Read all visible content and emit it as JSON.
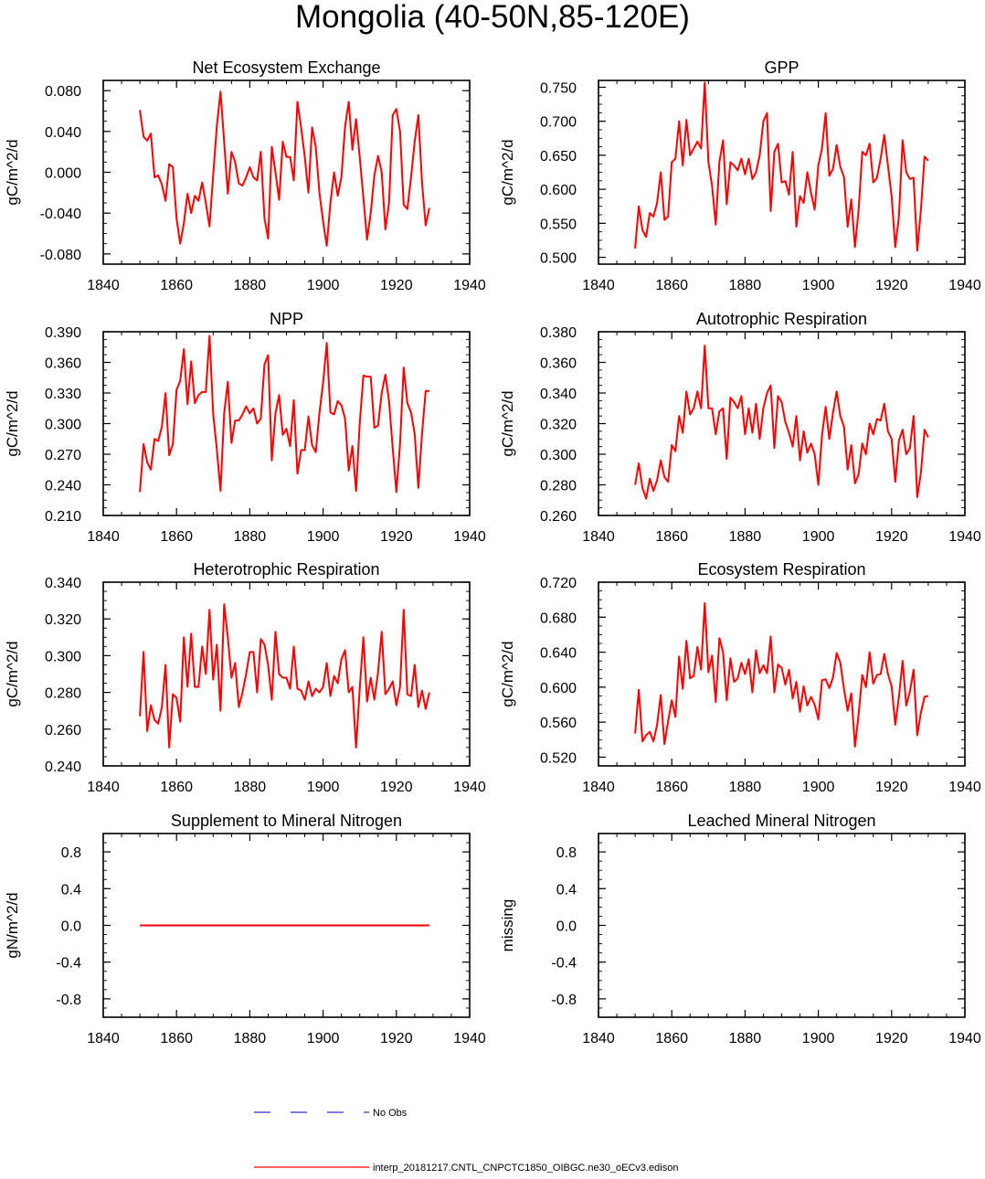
{
  "title": "Mongolia (40-50N,85-120E)",
  "colors": {
    "model": "#ff0000",
    "obs": "#3333cc",
    "axis": "#000000"
  },
  "legend": {
    "obs_label": "No Obs",
    "model_label": "interp_20181217.CNTL_CNPCTC1850_OIBGC.ne30_oECv3.edison"
  },
  "chart_data": [
    {
      "id": "nee",
      "type": "line",
      "title": "Net Ecosystem Exchange",
      "ylabel": "gC/m^2/d",
      "xlim": [
        1840,
        1940
      ],
      "ylim": [
        -0.09,
        0.09
      ],
      "xticks": [
        1840,
        1860,
        1880,
        1900,
        1920,
        1940
      ],
      "xtick_labels": [
        "1840",
        "1860",
        "1880",
        "1900",
        "1920",
        "1940"
      ],
      "yticks": [
        -0.08,
        -0.04,
        0.0,
        0.04,
        0.08
      ],
      "ytick_labels": [
        "-0.080",
        "-0.040",
        "0.000",
        "0.040",
        "0.080"
      ],
      "x_start": 1850,
      "series": [
        {
          "name": "model",
          "values": [
            0.061,
            0.035,
            0.031,
            0.038,
            -0.005,
            -0.003,
            -0.012,
            -0.028,
            0.008,
            0.005,
            -0.045,
            -0.07,
            -0.05,
            -0.021,
            -0.04,
            -0.023,
            -0.028,
            -0.01,
            -0.03,
            -0.053,
            -0.003,
            0.045,
            0.079,
            0.03,
            -0.021,
            0.02,
            0.01,
            -0.011,
            -0.013,
            -0.005,
            0.005,
            -0.005,
            -0.008,
            0.02,
            -0.045,
            -0.065,
            0.025,
            0.0,
            -0.027,
            0.03,
            0.015,
            0.015,
            -0.008,
            0.069,
            0.044,
            0.015,
            -0.02,
            0.044,
            0.025,
            -0.02,
            -0.048,
            -0.072,
            -0.03,
            0.0,
            -0.023,
            -0.005,
            0.045,
            0.069,
            0.022,
            0.052,
            0.015,
            -0.025,
            -0.066,
            -0.04,
            -0.003,
            0.016,
            0.0,
            -0.056,
            -0.03,
            0.056,
            0.062,
            0.04,
            -0.032,
            -0.036,
            -0.005,
            0.03,
            0.056,
            -0.01,
            -0.052,
            -0.035
          ]
        }
      ]
    },
    {
      "id": "gpp",
      "type": "line",
      "title": "GPP",
      "ylabel": "gC/m^2/d",
      "xlim": [
        1840,
        1940
      ],
      "ylim": [
        0.49,
        0.76
      ],
      "xticks": [
        1840,
        1860,
        1880,
        1900,
        1920,
        1940
      ],
      "xtick_labels": [
        "1840",
        "1860",
        "1880",
        "1900",
        "1920",
        "1940"
      ],
      "yticks": [
        0.5,
        0.55,
        0.6,
        0.65,
        0.7,
        0.75
      ],
      "ytick_labels": [
        "0.500",
        "0.550",
        "0.600",
        "0.650",
        "0.700",
        "0.750"
      ],
      "x_start": 1850,
      "series": [
        {
          "name": "model",
          "values": [
            0.513,
            0.575,
            0.54,
            0.53,
            0.565,
            0.56,
            0.58,
            0.625,
            0.555,
            0.56,
            0.64,
            0.645,
            0.7,
            0.635,
            0.702,
            0.65,
            0.66,
            0.67,
            0.66,
            0.757,
            0.64,
            0.605,
            0.548,
            0.64,
            0.672,
            0.578,
            0.64,
            0.635,
            0.628,
            0.645,
            0.622,
            0.645,
            0.615,
            0.625,
            0.65,
            0.7,
            0.712,
            0.568,
            0.655,
            0.667,
            0.61,
            0.612,
            0.592,
            0.655,
            0.545,
            0.59,
            0.58,
            0.625,
            0.595,
            0.57,
            0.635,
            0.66,
            0.712,
            0.62,
            0.63,
            0.665,
            0.633,
            0.618,
            0.545,
            0.585,
            0.515,
            0.57,
            0.655,
            0.65,
            0.667,
            0.61,
            0.617,
            0.645,
            0.68,
            0.635,
            0.59,
            0.515,
            0.56,
            0.672,
            0.625,
            0.615,
            0.617,
            0.51,
            0.57,
            0.648,
            0.642
          ]
        }
      ]
    },
    {
      "id": "npp",
      "type": "line",
      "title": "NPP",
      "ylabel": "gC/m^2/d",
      "xlim": [
        1840,
        1940
      ],
      "ylim": [
        0.21,
        0.39
      ],
      "xticks": [
        1840,
        1860,
        1880,
        1900,
        1920,
        1940
      ],
      "xtick_labels": [
        "1840",
        "1860",
        "1880",
        "1900",
        "1920",
        "1940"
      ],
      "yticks": [
        0.21,
        0.24,
        0.27,
        0.3,
        0.33,
        0.36,
        0.39
      ],
      "ytick_labels": [
        "0.210",
        "0.240",
        "0.270",
        "0.300",
        "0.330",
        "0.360",
        "0.390"
      ],
      "x_start": 1850,
      "series": [
        {
          "name": "model",
          "values": [
            0.233,
            0.28,
            0.262,
            0.255,
            0.285,
            0.283,
            0.297,
            0.33,
            0.269,
            0.28,
            0.333,
            0.342,
            0.373,
            0.319,
            0.361,
            0.32,
            0.328,
            0.331,
            0.331,
            0.386,
            0.31,
            0.275,
            0.234,
            0.31,
            0.341,
            0.281,
            0.303,
            0.303,
            0.309,
            0.317,
            0.31,
            0.315,
            0.3,
            0.305,
            0.358,
            0.367,
            0.264,
            0.31,
            0.328,
            0.289,
            0.295,
            0.278,
            0.323,
            0.251,
            0.274,
            0.274,
            0.307,
            0.279,
            0.272,
            0.31,
            0.34,
            0.379,
            0.311,
            0.309,
            0.322,
            0.318,
            0.305,
            0.254,
            0.278,
            0.234,
            0.3,
            0.347,
            0.346,
            0.346,
            0.296,
            0.298,
            0.33,
            0.348,
            0.322,
            0.276,
            0.233,
            0.28,
            0.355,
            0.32,
            0.311,
            0.29,
            0.237,
            0.29,
            0.332,
            0.332
          ]
        }
      ]
    },
    {
      "id": "ar",
      "type": "line",
      "title": "Autotrophic Respiration",
      "ylabel": "gC/m^2/d",
      "xlim": [
        1840,
        1940
      ],
      "ylim": [
        0.26,
        0.38
      ],
      "xticks": [
        1840,
        1860,
        1880,
        1900,
        1920,
        1940
      ],
      "xtick_labels": [
        "1840",
        "1860",
        "1880",
        "1900",
        "1920",
        "1940"
      ],
      "yticks": [
        0.26,
        0.28,
        0.3,
        0.32,
        0.34,
        0.36,
        0.38
      ],
      "ytick_labels": [
        "0.260",
        "0.280",
        "0.300",
        "0.320",
        "0.340",
        "0.360",
        "0.380"
      ],
      "x_start": 1850,
      "series": [
        {
          "name": "model",
          "values": [
            0.28,
            0.294,
            0.278,
            0.271,
            0.284,
            0.276,
            0.283,
            0.296,
            0.285,
            0.282,
            0.306,
            0.302,
            0.325,
            0.314,
            0.341,
            0.326,
            0.33,
            0.341,
            0.33,
            0.371,
            0.33,
            0.33,
            0.313,
            0.328,
            0.33,
            0.297,
            0.337,
            0.334,
            0.33,
            0.338,
            0.313,
            0.33,
            0.314,
            0.333,
            0.31,
            0.33,
            0.34,
            0.345,
            0.304,
            0.338,
            0.334,
            0.321,
            0.314,
            0.305,
            0.325,
            0.296,
            0.315,
            0.301,
            0.307,
            0.3,
            0.28,
            0.312,
            0.331,
            0.31,
            0.327,
            0.341,
            0.325,
            0.318,
            0.29,
            0.306,
            0.281,
            0.287,
            0.307,
            0.3,
            0.32,
            0.313,
            0.323,
            0.322,
            0.333,
            0.315,
            0.31,
            0.282,
            0.309,
            0.316,
            0.3,
            0.304,
            0.325,
            0.272,
            0.288,
            0.316,
            0.311
          ]
        }
      ]
    },
    {
      "id": "hr",
      "type": "line",
      "title": "Heterotrophic Respiration",
      "ylabel": "gC/m^2/d",
      "xlim": [
        1840,
        1940
      ],
      "ylim": [
        0.24,
        0.34
      ],
      "xticks": [
        1840,
        1860,
        1880,
        1900,
        1920,
        1940
      ],
      "xtick_labels": [
        "1840",
        "1860",
        "1880",
        "1900",
        "1920",
        "1940"
      ],
      "yticks": [
        0.24,
        0.26,
        0.28,
        0.3,
        0.32,
        0.34
      ],
      "ytick_labels": [
        "0.240",
        "0.260",
        "0.280",
        "0.300",
        "0.320",
        "0.340"
      ],
      "x_start": 1850,
      "series": [
        {
          "name": "model",
          "values": [
            0.267,
            0.302,
            0.259,
            0.273,
            0.265,
            0.263,
            0.272,
            0.295,
            0.25,
            0.279,
            0.277,
            0.264,
            0.31,
            0.283,
            0.312,
            0.283,
            0.283,
            0.305,
            0.29,
            0.325,
            0.287,
            0.306,
            0.27,
            0.328,
            0.31,
            0.288,
            0.296,
            0.272,
            0.28,
            0.29,
            0.302,
            0.302,
            0.28,
            0.309,
            0.306,
            0.295,
            0.276,
            0.313,
            0.29,
            0.288,
            0.288,
            0.282,
            0.305,
            0.282,
            0.281,
            0.276,
            0.286,
            0.278,
            0.282,
            0.28,
            0.283,
            0.296,
            0.278,
            0.289,
            0.285,
            0.298,
            0.303,
            0.28,
            0.283,
            0.25,
            0.282,
            0.31,
            0.275,
            0.288,
            0.276,
            0.291,
            0.313,
            0.279,
            0.282,
            0.286,
            0.273,
            0.283,
            0.325,
            0.279,
            0.278,
            0.295,
            0.272,
            0.281,
            0.271,
            0.28
          ]
        }
      ]
    },
    {
      "id": "er",
      "type": "line",
      "title": "Ecosystem Respiration",
      "ylabel": "gC/m^2/d",
      "xlim": [
        1840,
        1940
      ],
      "ylim": [
        0.51,
        0.72
      ],
      "xticks": [
        1840,
        1860,
        1880,
        1900,
        1920,
        1940
      ],
      "xtick_labels": [
        "1840",
        "1860",
        "1880",
        "1900",
        "1920",
        "1940"
      ],
      "yticks": [
        0.52,
        0.56,
        0.6,
        0.64,
        0.68,
        0.72
      ],
      "ytick_labels": [
        "0.520",
        "0.560",
        "0.600",
        "0.640",
        "0.680",
        "0.720"
      ],
      "x_start": 1850,
      "series": [
        {
          "name": "model",
          "values": [
            0.547,
            0.597,
            0.538,
            0.545,
            0.549,
            0.538,
            0.557,
            0.591,
            0.535,
            0.561,
            0.585,
            0.566,
            0.635,
            0.598,
            0.653,
            0.61,
            0.613,
            0.646,
            0.62,
            0.696,
            0.617,
            0.636,
            0.583,
            0.656,
            0.64,
            0.585,
            0.633,
            0.606,
            0.61,
            0.628,
            0.615,
            0.632,
            0.594,
            0.642,
            0.616,
            0.625,
            0.616,
            0.658,
            0.594,
            0.626,
            0.622,
            0.603,
            0.62,
            0.587,
            0.606,
            0.572,
            0.601,
            0.579,
            0.589,
            0.58,
            0.563,
            0.608,
            0.609,
            0.599,
            0.611,
            0.639,
            0.628,
            0.598,
            0.573,
            0.593,
            0.532,
            0.569,
            0.614,
            0.6,
            0.64,
            0.604,
            0.614,
            0.615,
            0.638,
            0.615,
            0.601,
            0.557,
            0.589,
            0.63,
            0.579,
            0.595,
            0.62,
            0.545,
            0.571,
            0.589,
            0.59
          ]
        }
      ]
    },
    {
      "id": "smn",
      "type": "line",
      "title": "Supplement to Mineral Nitrogen",
      "ylabel": "gN/m^2/d",
      "xlim": [
        1840,
        1940
      ],
      "ylim": [
        -1.0,
        1.0
      ],
      "xticks": [
        1840,
        1860,
        1880,
        1900,
        1920,
        1940
      ],
      "xtick_labels": [
        "1840",
        "1860",
        "1880",
        "1900",
        "1920",
        "1940"
      ],
      "yticks": [
        -0.8,
        -0.4,
        0.0,
        0.4,
        0.8
      ],
      "ytick_labels": [
        "-0.8",
        "-0.4",
        "0.0",
        "0.4",
        "0.8"
      ],
      "x_start": 1850,
      "series": [
        {
          "name": "model",
          "values": [
            0.0,
            0.0,
            0.0,
            0.0,
            0.0,
            0.0,
            0.0,
            0.0,
            0.0,
            0.0,
            0.0,
            0.0,
            0.0,
            0.0,
            0.0,
            0.0,
            0.0,
            0.0,
            0.0,
            0.0,
            0.0,
            0.0,
            0.0,
            0.0,
            0.0,
            0.0,
            0.0,
            0.0,
            0.0,
            0.0,
            0.0,
            0.0,
            0.0,
            0.0,
            0.0,
            0.0,
            0.0,
            0.0,
            0.0,
            0.0,
            0.0,
            0.0,
            0.0,
            0.0,
            0.0,
            0.0,
            0.0,
            0.0,
            0.0,
            0.0,
            0.0,
            0.0,
            0.0,
            0.0,
            0.0,
            0.0,
            0.0,
            0.0,
            0.0,
            0.0,
            0.0,
            0.0,
            0.0,
            0.0,
            0.0,
            0.0,
            0.0,
            0.0,
            0.0,
            0.0,
            0.0,
            0.0,
            0.0,
            0.0,
            0.0,
            0.0,
            0.0,
            0.0,
            0.0,
            0.0
          ]
        }
      ]
    },
    {
      "id": "lmn",
      "type": "line",
      "title": "Leached Mineral Nitrogen",
      "ylabel": "missing",
      "xlim": [
        1840,
        1940
      ],
      "ylim": [
        -1.0,
        1.0
      ],
      "xticks": [
        1840,
        1860,
        1880,
        1900,
        1920,
        1940
      ],
      "xtick_labels": [
        "1840",
        "1860",
        "1880",
        "1900",
        "1920",
        "1940"
      ],
      "yticks": [
        -0.8,
        -0.4,
        0.0,
        0.4,
        0.8
      ],
      "ytick_labels": [
        "-0.8",
        "-0.4",
        "0.0",
        "0.4",
        "0.8"
      ],
      "x_start": 1850,
      "series": []
    }
  ]
}
